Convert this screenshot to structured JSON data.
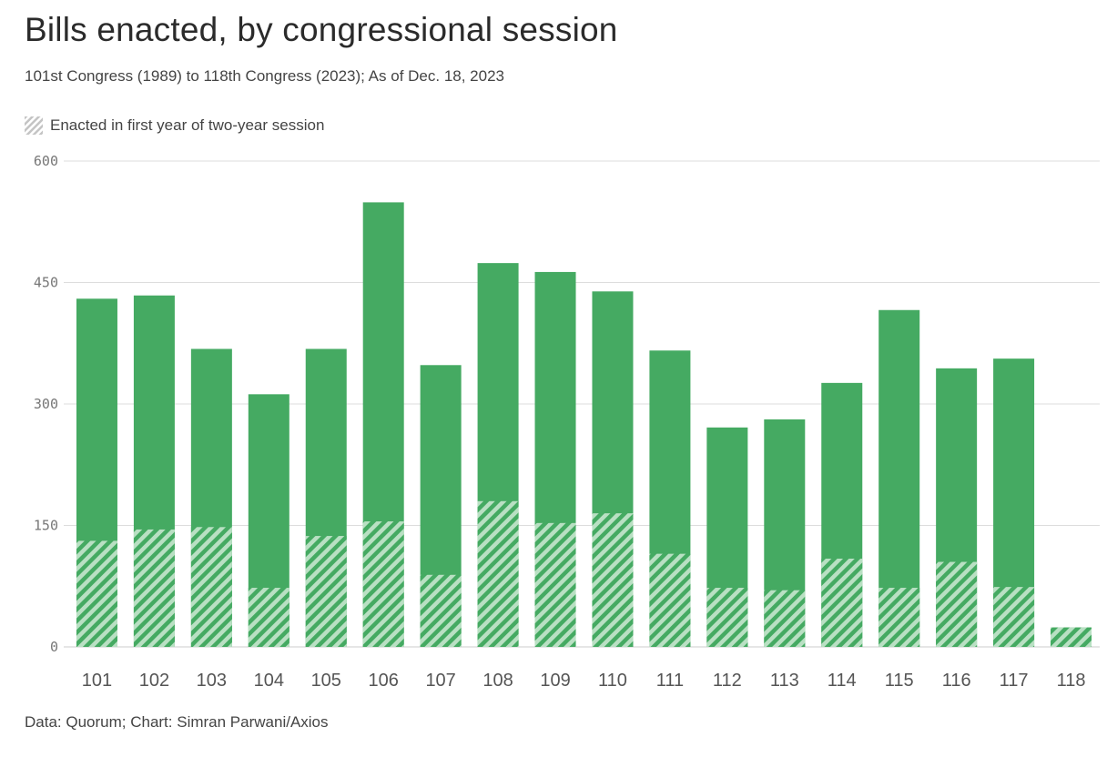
{
  "title": "Bills enacted, by congressional session",
  "subtitle": "101st Congress (1989) to 118th Congress (2023); As of Dec. 18, 2023",
  "source": "Data: Quorum; Chart: Simran Parwani/Axios",
  "colors": {
    "bar": "#45aa62",
    "hatch_light": "#b9e0c3",
    "grid": "#dddddd",
    "baseline": "#cccccc"
  },
  "chart_data": {
    "type": "bar",
    "stacked": "overlay",
    "title": "Bills enacted, by congressional session",
    "categories": [
      "101",
      "102",
      "103",
      "104",
      "105",
      "106",
      "107",
      "108",
      "109",
      "110",
      "111",
      "112",
      "113",
      "114",
      "115",
      "116",
      "117",
      "118"
    ],
    "series": [
      {
        "name": "total",
        "values": [
          430,
          434,
          368,
          312,
          368,
          549,
          348,
          474,
          463,
          439,
          366,
          271,
          281,
          326,
          416,
          344,
          356,
          24
        ]
      },
      {
        "name": "Enacted in first year of two-year session",
        "pattern": "hatched",
        "values": [
          131,
          145,
          148,
          73,
          137,
          155,
          89,
          180,
          153,
          165,
          115,
          73,
          70,
          109,
          73,
          105,
          74,
          24
        ]
      }
    ],
    "legend": [
      "Enacted in first year of two-year session"
    ],
    "yticks": [
      0,
      150,
      300,
      450,
      600
    ],
    "ylim": [
      0,
      600
    ],
    "grid": true,
    "legend_position": "top-left"
  }
}
